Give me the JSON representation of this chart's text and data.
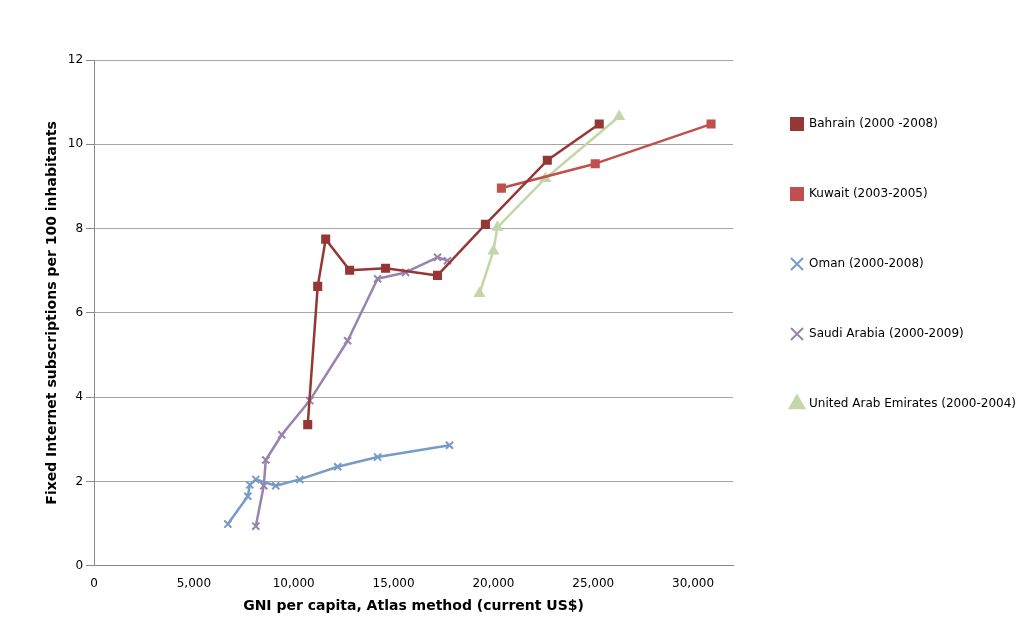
{
  "chart_data": {
    "type": "line",
    "xlabel": "GNI per capita, Atlas method (current US$)",
    "ylabel": "Fixed Internet subscriptions per 100 inhabitants",
    "xlim": [
      0,
      32000
    ],
    "xticks": [
      {
        "value": 0,
        "label": "0"
      },
      {
        "value": 5000,
        "label": "5,000"
      },
      {
        "value": 10000,
        "label": "10,000"
      },
      {
        "value": 15000,
        "label": "15,000"
      },
      {
        "value": 20000,
        "label": "20,000"
      },
      {
        "value": 25000,
        "label": "25,000"
      },
      {
        "value": 30000,
        "label": "30,000"
      }
    ],
    "ylim": [
      0,
      12
    ],
    "yticks": [
      0,
      2,
      4,
      6,
      8,
      10,
      12
    ],
    "grid": "y",
    "legend": "right",
    "series": [
      {
        "name": "Bahrain (2000 -2008)",
        "color": "#953735",
        "marker": "square",
        "x": [
          10700,
          11200,
          11600,
          12800,
          14600,
          17200,
          19600,
          22700,
          25300
        ],
        "values": [
          3.35,
          6.63,
          7.75,
          7.01,
          7.06,
          6.89,
          8.1,
          9.62,
          10.48
        ]
      },
      {
        "name": "Kuwait (2003-2005)",
        "color": "#c0504d",
        "marker": "square",
        "x": [
          20400,
          25100,
          30900
        ],
        "values": [
          8.96,
          9.54,
          10.48
        ]
      },
      {
        "name": "Oman (2000-2008)",
        "color": "#779bc9",
        "marker": "cross",
        "x": [
          6700,
          7700,
          7800,
          8100,
          9100,
          10300,
          12200,
          14200,
          17800
        ],
        "values": [
          0.99,
          1.65,
          1.92,
          2.05,
          1.9,
          2.05,
          2.35,
          2.58,
          2.86
        ]
      },
      {
        "name": "Saudi Arabia (2000-2009)",
        "color": "#9883b0",
        "marker": "cross",
        "x": [
          8100,
          8500,
          8600,
          9400,
          10800,
          12700,
          14200,
          15600,
          17200,
          17700
        ],
        "values": [
          0.94,
          1.9,
          2.51,
          3.11,
          3.92,
          5.34,
          6.81,
          6.96,
          7.32,
          7.24
        ]
      },
      {
        "name": "United Arab Emirates (2000-2004)",
        "color": "#c4d6a8",
        "marker": "triangle",
        "x": [
          19300,
          20000,
          20200,
          22600,
          26300
        ],
        "values": [
          6.46,
          7.47,
          8.03,
          9.19,
          10.66
        ]
      }
    ]
  }
}
